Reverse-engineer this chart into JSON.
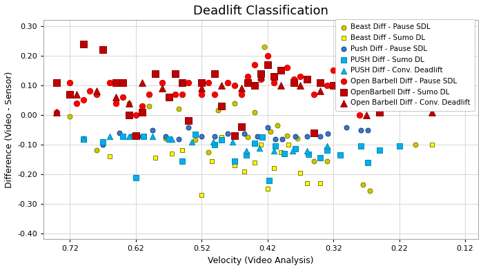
{
  "title": "Deadlift Classification",
  "xlabel": "Velocity (Video Analysis)",
  "ylabel": "Difference (Video - Sensor)",
  "xlim": [
    0.76,
    0.1
  ],
  "ylim": [
    -0.42,
    0.32
  ],
  "xticks": [
    0.72,
    0.62,
    0.52,
    0.42,
    0.32,
    0.22,
    0.12
  ],
  "yticks": [
    -0.4,
    -0.3,
    -0.2,
    -0.1,
    0.0,
    0.1,
    0.2,
    0.3
  ],
  "series": [
    {
      "label": "Beast Diff - Pause SDL",
      "markeredgecolor": "#808000",
      "markerfacecolor": "#C8C800",
      "marker": "o",
      "markersize": 5,
      "x": [
        0.72,
        0.68,
        0.65,
        0.63,
        0.6,
        0.575,
        0.555,
        0.53,
        0.51,
        0.495,
        0.47,
        0.45,
        0.44,
        0.425,
        0.415,
        0.405,
        0.39,
        0.375,
        0.35,
        0.33,
        0.275,
        0.265,
        0.22,
        0.195
      ],
      "y": [
        -0.005,
        -0.12,
        0.05,
        0.04,
        0.03,
        -0.08,
        0.02,
        -0.085,
        -0.125,
        0.015,
        0.04,
        -0.075,
        0.01,
        0.23,
        -0.055,
        -0.035,
        -0.07,
        -0.08,
        -0.155,
        -0.155,
        -0.235,
        -0.255,
        0.13,
        -0.1
      ]
    },
    {
      "label": "Beast Diff - Sumo DL",
      "markeredgecolor": "#808000",
      "markerfacecolor": "#FFFF00",
      "marker": "s",
      "markersize": 5,
      "x": [
        0.66,
        0.59,
        0.565,
        0.55,
        0.52,
        0.505,
        0.49,
        0.47,
        0.455,
        0.44,
        0.43,
        0.42,
        0.41,
        0.4,
        0.388,
        0.37,
        0.36,
        0.34,
        0.17
      ],
      "y": [
        -0.14,
        -0.145,
        -0.13,
        -0.12,
        -0.27,
        -0.155,
        -0.075,
        -0.17,
        -0.19,
        -0.16,
        -0.1,
        -0.25,
        -0.18,
        -0.125,
        -0.1,
        -0.195,
        -0.23,
        -0.23,
        -0.1
      ]
    },
    {
      "label": "Push Diff - Pause SDL",
      "markeredgecolor": "#004488",
      "markerfacecolor": "#4472C4",
      "marker": "o",
      "markersize": 5,
      "x": [
        0.7,
        0.67,
        0.645,
        0.625,
        0.61,
        0.595,
        0.575,
        0.555,
        0.54,
        0.52,
        0.5,
        0.48,
        0.455,
        0.435,
        0.42,
        0.408,
        0.398,
        0.378,
        0.36,
        0.34,
        0.328,
        0.3,
        0.278,
        0.268
      ],
      "y": [
        -0.08,
        -0.1,
        -0.06,
        -0.07,
        -0.072,
        -0.052,
        -0.072,
        -0.082,
        -0.042,
        -0.072,
        -0.072,
        -0.062,
        -0.062,
        -0.072,
        -0.042,
        -0.082,
        -0.082,
        -0.072,
        -0.072,
        -0.072,
        -0.062,
        -0.042,
        -0.052,
        -0.052
      ]
    },
    {
      "label": "PUSH Diff - Sumo DL",
      "markeredgecolor": "#0088AA",
      "markerfacecolor": "#00B0F0",
      "marker": "s",
      "markersize": 6,
      "x": [
        0.7,
        0.67,
        0.64,
        0.62,
        0.608,
        0.57,
        0.55,
        0.53,
        0.5,
        0.49,
        0.47,
        0.452,
        0.44,
        0.428,
        0.418,
        0.408,
        0.395,
        0.378,
        0.358,
        0.34,
        0.33,
        0.31,
        0.278,
        0.268,
        0.25,
        0.22
      ],
      "y": [
        -0.082,
        -0.092,
        -0.072,
        -0.212,
        -0.072,
        -0.082,
        -0.155,
        -0.065,
        -0.1,
        -0.085,
        -0.155,
        -0.135,
        -0.095,
        -0.075,
        -0.222,
        -0.105,
        -0.13,
        -0.115,
        -0.132,
        -0.145,
        -0.118,
        -0.135,
        -0.105,
        -0.16,
        -0.12,
        -0.105
      ]
    },
    {
      "label": "PUSH Diff - Conv. Deadlift",
      "markeredgecolor": "#0088AA",
      "markerfacecolor": "#00B0F0",
      "marker": "^",
      "markersize": 6,
      "x": [
        0.7,
        0.66,
        0.63,
        0.595,
        0.565,
        0.535,
        0.503,
        0.473,
        0.452,
        0.432,
        0.41,
        0.382,
        0.36,
        0.33
      ],
      "y": [
        -0.082,
        -0.072,
        -0.072,
        -0.072,
        -0.082,
        -0.092,
        -0.092,
        -0.092,
        -0.122,
        -0.112,
        -0.122,
        -0.122,
        -0.122,
        -0.105
      ]
    },
    {
      "label": "Open Barbell Diff - Pause SDL",
      "markeredgecolor": "#CC0000",
      "markerfacecolor": "#FF0000",
      "marker": "o",
      "markersize": 6,
      "x": [
        0.74,
        0.72,
        0.71,
        0.7,
        0.69,
        0.68,
        0.66,
        0.65,
        0.64,
        0.63,
        0.62,
        0.61,
        0.6,
        0.58,
        0.56,
        0.55,
        0.54,
        0.52,
        0.51,
        0.5,
        0.48,
        0.47,
        0.46,
        0.45,
        0.44,
        0.43,
        0.42,
        0.41,
        0.4,
        0.39,
        0.38,
        0.37,
        0.35,
        0.33,
        0.32,
        0.3,
        0.28,
        0.27,
        0.25,
        0.228,
        0.2
      ],
      "y": [
        0.01,
        0.11,
        0.04,
        0.05,
        0.08,
        0.07,
        0.11,
        0.04,
        0.06,
        0.0,
        0.0,
        0.03,
        0.07,
        0.11,
        0.07,
        0.07,
        0.11,
        0.07,
        0.11,
        0.07,
        0.11,
        0.1,
        0.07,
        0.13,
        0.17,
        0.12,
        0.2,
        0.11,
        0.15,
        0.16,
        0.12,
        0.13,
        0.07,
        0.1,
        0.15,
        0.1,
        0.0,
        0.09,
        0.09,
        0.07,
        0.06
      ]
    },
    {
      "label": "OpenBarbell Diff - Sumo DL",
      "markeredgecolor": "#880000",
      "markerfacecolor": "#C00000",
      "marker": "s",
      "markersize": 7,
      "x": [
        0.74,
        0.72,
        0.7,
        0.67,
        0.65,
        0.64,
        0.63,
        0.62,
        0.61,
        0.59,
        0.57,
        0.56,
        0.55,
        0.54,
        0.52,
        0.5,
        0.49,
        0.47,
        0.46,
        0.45,
        0.44,
        0.43,
        0.42,
        0.41,
        0.4,
        0.38,
        0.36,
        0.35,
        0.34,
        0.32,
        0.3,
        0.27,
        0.25,
        0.228,
        0.2
      ],
      "y": [
        0.11,
        0.07,
        0.24,
        0.22,
        0.11,
        0.11,
        0.0,
        -0.07,
        0.01,
        0.14,
        0.06,
        0.14,
        0.11,
        -0.02,
        0.11,
        0.14,
        0.03,
        -0.07,
        -0.04,
        0.11,
        0.1,
        0.14,
        0.17,
        0.13,
        0.15,
        0.11,
        0.12,
        -0.06,
        0.11,
        0.1,
        0.1,
        0.09,
        0.01,
        0.07,
        0.06
      ]
    },
    {
      "label": "Open Barbell Diff - Conv. Deadlift",
      "markeredgecolor": "#880000",
      "markerfacecolor": "#C00000",
      "marker": "^",
      "markersize": 7,
      "x": [
        0.74,
        0.71,
        0.68,
        0.65,
        0.63,
        0.61,
        0.58,
        0.55,
        0.52,
        0.49,
        0.46,
        0.43,
        0.4,
        0.37,
        0.34,
        0.27,
        0.17
      ],
      "y": [
        0.01,
        0.07,
        0.08,
        0.06,
        0.04,
        0.11,
        0.09,
        0.11,
        0.09,
        0.1,
        0.09,
        0.13,
        0.1,
        0.1,
        0.08,
        0.0,
        0.01
      ]
    }
  ],
  "bg_color": "#FFFFFF",
  "grid_color": "#D0D0D0",
  "title_fontsize": 13,
  "axis_fontsize": 9,
  "tick_fontsize": 8,
  "legend_fontsize": 7.5
}
